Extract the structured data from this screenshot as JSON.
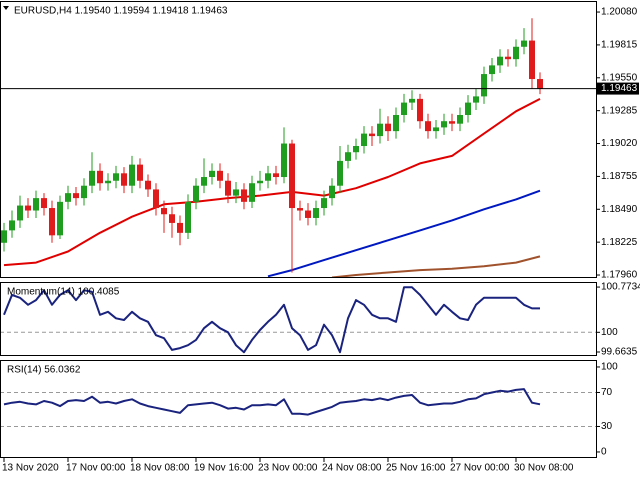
{
  "chart_data": [
    {
      "type": "candlestick",
      "title": "EURUSD,H4  1.19540 1.19594 1.19418 1.19463",
      "up_color": "#1f9d1f",
      "down_color": "#e01b1b",
      "open": [
        1.1822,
        1.1832,
        1.184,
        1.1852,
        1.1848,
        1.1858,
        1.185,
        1.1828,
        1.1855,
        1.1862,
        1.1858,
        1.1868,
        1.188,
        1.187,
        1.1872,
        1.1878,
        1.1868,
        1.1885,
        1.1872,
        1.1865,
        1.185,
        1.1845,
        1.1838,
        1.183,
        1.1855,
        1.1868,
        1.1875,
        1.188,
        1.1872,
        1.186,
        1.1865,
        1.1855,
        1.187,
        1.1872,
        1.1878,
        1.1875,
        1.1902,
        1.185,
        1.1848,
        1.1842,
        1.185,
        1.1858,
        1.1868,
        1.1888,
        1.1895,
        1.19,
        1.191,
        1.1908,
        1.1918,
        1.1912,
        1.1925,
        1.1935,
        1.1938,
        1.192,
        1.1912,
        1.1915,
        1.192,
        1.1918,
        1.1925,
        1.1935,
        1.194,
        1.1958,
        1.1965,
        1.1972,
        1.197,
        1.198,
        1.1985,
        1.1954
      ],
      "high": [
        1.1838,
        1.1848,
        1.186,
        1.1858,
        1.1864,
        1.1862,
        1.1856,
        1.186,
        1.1868,
        1.1867,
        1.1874,
        1.1895,
        1.1886,
        1.1878,
        1.1884,
        1.1883,
        1.1892,
        1.189,
        1.1877,
        1.187,
        1.1856,
        1.1851,
        1.1844,
        1.1861,
        1.1874,
        1.189,
        1.1886,
        1.1886,
        1.1878,
        1.1871,
        1.187,
        1.1876,
        1.188,
        1.1884,
        1.1884,
        1.1915,
        1.1905,
        1.1856,
        1.1854,
        1.1856,
        1.1864,
        1.1874,
        1.19,
        1.1901,
        1.1906,
        1.1916,
        1.1916,
        1.193,
        1.1924,
        1.1931,
        1.1942,
        1.1945,
        1.1942,
        1.1926,
        1.1921,
        1.1926,
        1.1926,
        1.1931,
        1.1941,
        1.1946,
        1.1964,
        1.1971,
        1.1978,
        1.1978,
        1.1986,
        1.1995,
        1.2003,
        1.19594
      ],
      "low": [
        1.1815,
        1.1826,
        1.1834,
        1.1842,
        1.1842,
        1.1844,
        1.1822,
        1.1825,
        1.1849,
        1.1852,
        1.1852,
        1.1862,
        1.1864,
        1.1864,
        1.1866,
        1.1862,
        1.1862,
        1.1866,
        1.1859,
        1.1844,
        1.183,
        1.1826,
        1.182,
        1.1825,
        1.1849,
        1.1862,
        1.1869,
        1.1866,
        1.1854,
        1.1854,
        1.1849,
        1.185,
        1.1864,
        1.1866,
        1.1869,
        1.187,
        1.1798,
        1.184,
        1.1836,
        1.1836,
        1.1844,
        1.1852,
        1.1862,
        1.1882,
        1.1889,
        1.1894,
        1.19,
        1.1902,
        1.1904,
        1.1906,
        1.1919,
        1.1929,
        1.1914,
        1.1906,
        1.1906,
        1.1909,
        1.1912,
        1.1912,
        1.1919,
        1.1929,
        1.1934,
        1.1952,
        1.1959,
        1.1964,
        1.1964,
        1.1974,
        1.1946,
        1.19418
      ],
      "close": [
        1.1832,
        1.184,
        1.1852,
        1.1848,
        1.1858,
        1.185,
        1.1828,
        1.1855,
        1.1862,
        1.1858,
        1.1868,
        1.188,
        1.187,
        1.1872,
        1.1878,
        1.1868,
        1.1885,
        1.1872,
        1.1865,
        1.185,
        1.1845,
        1.1838,
        1.183,
        1.1855,
        1.1868,
        1.1875,
        1.188,
        1.1872,
        1.186,
        1.1865,
        1.1855,
        1.187,
        1.1872,
        1.1878,
        1.1875,
        1.1902,
        1.185,
        1.1848,
        1.1842,
        1.185,
        1.1858,
        1.1868,
        1.1888,
        1.1895,
        1.19,
        1.191,
        1.1908,
        1.1918,
        1.1912,
        1.1925,
        1.1935,
        1.1938,
        1.192,
        1.1912,
        1.1915,
        1.192,
        1.1918,
        1.1925,
        1.1935,
        1.194,
        1.1958,
        1.1965,
        1.1972,
        1.197,
        1.198,
        1.1985,
        1.1954,
        1.19463
      ],
      "series": [
        {
          "color": "#e00000",
          "x": [
            0,
            4,
            8,
            12,
            16,
            20,
            24,
            28,
            32,
            36,
            40,
            44,
            48,
            52,
            56,
            60,
            64,
            67
          ],
          "values": [
            1.1804,
            1.1806,
            1.1815,
            1.183,
            1.1843,
            1.1853,
            1.1855,
            1.1858,
            1.186,
            1.1863,
            1.186,
            1.1866,
            1.1875,
            1.1886,
            1.1892,
            1.191,
            1.1928,
            1.1938
          ]
        },
        {
          "color": "#0018c0",
          "x": [
            33,
            36,
            40,
            44,
            48,
            52,
            56,
            60,
            64,
            67
          ],
          "values": [
            1.1795,
            1.18,
            1.1808,
            1.1816,
            1.1824,
            1.1832,
            1.184,
            1.1849,
            1.1857,
            1.1864
          ]
        },
        {
          "color": "#a0522d",
          "x": [
            41,
            44,
            48,
            52,
            56,
            60,
            64,
            67
          ],
          "values": [
            1.1794,
            1.1796,
            1.1798,
            1.18,
            1.1801,
            1.1803,
            1.1806,
            1.1811
          ]
        }
      ],
      "current_price": {
        "value": 1.19463,
        "label": "1.19463"
      },
      "xlim": [
        -0.5,
        74.125
      ],
      "ylim": [
        1.17936,
        1.20169
      ],
      "yticks": [
        {
          "value": 1.2008,
          "label": "1.20080"
        },
        {
          "value": 1.19815,
          "label": "1.19815"
        },
        {
          "value": 1.1955,
          "label": "1.19550"
        },
        {
          "value": 1.19285,
          "label": "1.19285"
        },
        {
          "value": 1.1902,
          "label": "1.19020"
        },
        {
          "value": 1.18755,
          "label": "1.18755"
        },
        {
          "value": 1.1849,
          "label": "1.18490"
        },
        {
          "value": 1.18225,
          "label": "1.18225"
        },
        {
          "value": 1.1796,
          "label": "1.17960"
        }
      ],
      "xticks": [
        {
          "value": 0,
          "label": "13 Nov 2020"
        },
        {
          "value": 8,
          "label": "17 Nov 00:00"
        },
        {
          "value": 16,
          "label": "18 Nov 08:00"
        },
        {
          "value": 24,
          "label": "19 Nov 16:00"
        },
        {
          "value": 32,
          "label": "23 Nov 00:00"
        },
        {
          "value": 40,
          "label": "24 Nov 08:00"
        },
        {
          "value": 48,
          "label": "25 Nov 16:00"
        },
        {
          "value": 56,
          "label": "27 Nov 00:00"
        },
        {
          "value": 64,
          "label": "30 Nov 08:00"
        }
      ]
    },
    {
      "type": "line",
      "title": "Momentum(14) 100.4085",
      "series": [
        {
          "color": "#1a237e",
          "values": [
            100.3,
            100.64,
            100.59,
            100.47,
            100.55,
            100.72,
            100.47,
            100.64,
            100.72,
            100.55,
            100.72,
            100.69,
            100.3,
            100.35,
            100.24,
            100.21,
            100.35,
            100.24,
            100.18,
            99.95,
            99.9,
            99.7,
            99.73,
            99.78,
            99.87,
            100.07,
            100.18,
            100.07,
            100.0,
            99.78,
            99.66,
            99.87,
            100.04,
            100.18,
            100.3,
            100.47,
            100.07,
            99.95,
            99.7,
            99.78,
            100.13,
            99.95,
            99.66,
            100.24,
            100.55,
            100.47,
            100.3,
            100.24,
            100.24,
            100.18,
            100.77,
            100.77,
            100.64,
            100.47,
            100.3,
            100.47,
            100.35,
            100.24,
            100.21,
            100.47,
            100.59,
            100.59,
            100.59,
            100.59,
            100.59,
            100.47,
            100.4085,
            100.4085
          ]
        }
      ],
      "xlim": [
        -0.5,
        74.125
      ],
      "ylim": [
        99.595,
        100.86
      ],
      "yticks": [
        100.7734,
        100,
        99.6635
      ],
      "levels": [
        100
      ]
    },
    {
      "type": "line",
      "title": "RSI(14) 56.0362",
      "series": [
        {
          "color": "#1a237e",
          "values": [
            56,
            58,
            59,
            57,
            56,
            60,
            58,
            54,
            60,
            61,
            60,
            65,
            58,
            59,
            57,
            60,
            62,
            57,
            54,
            52,
            50,
            48,
            46,
            55,
            56,
            57,
            58,
            55,
            51,
            52,
            50,
            55,
            55,
            56,
            55,
            62,
            45,
            45,
            44,
            47,
            50,
            53,
            58,
            59,
            60,
            62,
            61,
            63,
            61,
            64,
            66,
            67,
            58,
            55,
            56,
            57,
            57,
            59,
            62,
            63,
            68,
            70,
            72,
            71,
            73,
            74,
            58,
            56.0362
          ]
        }
      ],
      "xlim": [
        -0.5,
        74.125
      ],
      "ylim": [
        -7.1,
        108.2
      ],
      "yticks": [
        100,
        70,
        30,
        0
      ],
      "levels": [
        70,
        30
      ]
    }
  ]
}
